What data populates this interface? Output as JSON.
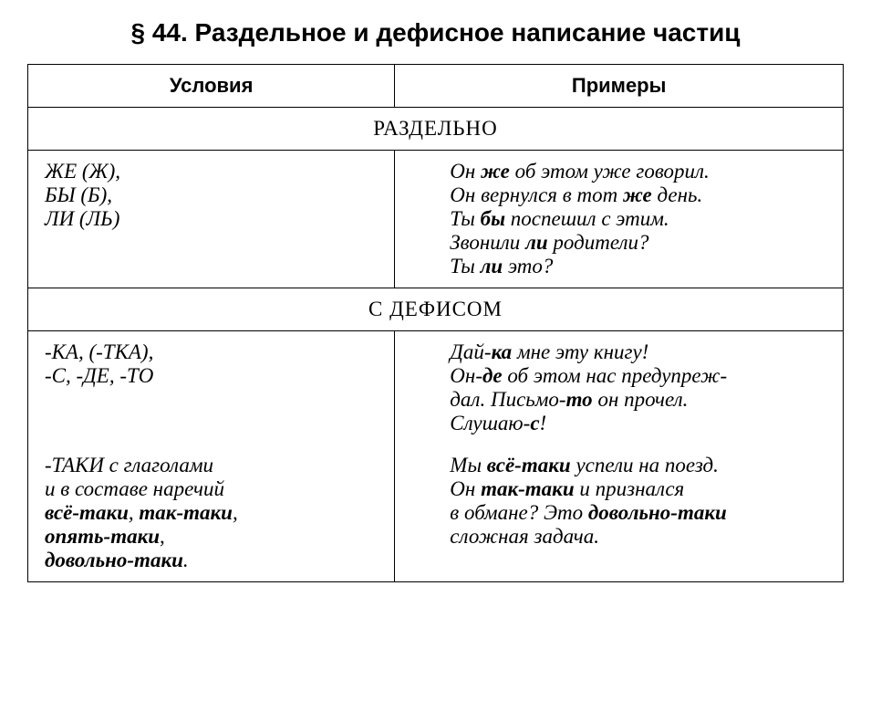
{
  "title": "§ 44. Раздельное и дефисное написание частиц",
  "headers": {
    "conditions": "Условия",
    "examples": "Примеры"
  },
  "sections": {
    "separate": {
      "label": "РАЗДЕЛЬНО",
      "row1": {
        "cond_html": "ЖЕ (Ж),<br>БЫ (Б),<br>ЛИ (ЛЬ)",
        "ex_html": "Он <span class='b'>же</span> об этом уже говорил.<br>Он вернулся в тот <span class='b'>же</span> день.<br>Ты <span class='b'>бы</span> поспешил с этим.<br>Звонили <span class='b'>ли</span> родители?<br>Ты <span class='b'>ли</span> это?"
      }
    },
    "hyphen": {
      "label": "С ДЕФИСОМ",
      "row1": {
        "cond_html": "-КА, (-ТКА),<br>-С, -ДЕ, -ТО",
        "ex_html": "Дай-<span class='b'>ка</span> мне эту книгу!<br>Он-<span class='b'>де</span> об этом нас предупреж-<br>дал. Письмо-<span class='b'>то</span> он прочел.<br>Слушаю-<span class='b'>с</span>!"
      },
      "row2": {
        "cond_html": "-ТАКИ с глаголами<br>и в составе наречий<br><span class='b'>всё-таки</span>, <span class='b'>так-таки</span>,<br><span class='b'>опять-таки</span>,<br><span class='b'>довольно-таки</span>.",
        "ex_html": "Мы <span class='b'>всё-таки</span> успели на поезд.<br>Он <span class='b'>так-таки</span> и признался<br>в обмане? Это <span class='b'>довольно-таки</span><br>сложная задача."
      }
    }
  },
  "style": {
    "font_family_body": "Georgia, Times New Roman, serif",
    "font_family_headings": "Arial, sans-serif",
    "title_fontsize": 28,
    "cell_fontsize": 23,
    "header_fontsize": 22,
    "text_color": "#000000",
    "border_color": "#000000",
    "background_color": "#ffffff",
    "conditions_width_pct": 45,
    "examples_width_pct": 55
  }
}
